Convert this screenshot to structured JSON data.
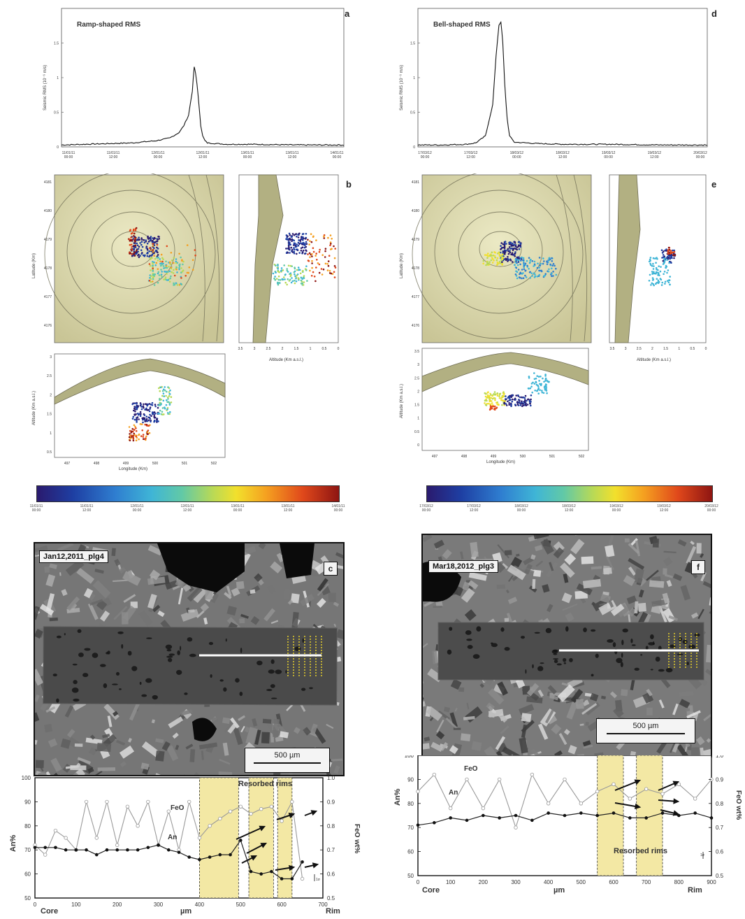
{
  "panels": {
    "a": {
      "letter": "a",
      "title": "Ramp-shaped RMS",
      "ylabel": "Seismic RMS (10⁻⁶ m/s)",
      "yticks": [
        "0",
        "0.5",
        "1",
        "1.5"
      ],
      "xticks": [
        "11/01/11\n00:00",
        "11/01/11\n12:00",
        "12/01/11\n00:00",
        "12/01/11\n12:00",
        "13/01/11\n00:00",
        "13/01/11\n12:00",
        "14/01/11\n00:00"
      ]
    },
    "d": {
      "letter": "d",
      "title": "Bell-shaped RMS",
      "ylabel": "Seismic RMS (10⁻⁶ m/s)",
      "yticks": [
        "0",
        "0.5",
        "1",
        "1.5"
      ],
      "xticks": [
        "17/03/12\n00:00",
        "17/03/12\n12:00",
        "18/03/12\n00:00",
        "18/03/12\n12:00",
        "19/03/12\n00:00",
        "19/03/12\n12:00",
        "20/03/12\n00:00"
      ]
    },
    "b": {
      "letter": "b",
      "lat_label": "Latitude (Km)",
      "lat_ticks": [
        "4181",
        "4180",
        "4179",
        "4178",
        "4177",
        "4176"
      ],
      "alt_label": "Altitude (Km a.s.l.)",
      "alt_ticks": [
        "3.5",
        "3",
        "2.5",
        "2",
        "1.5",
        "1",
        "0.5",
        "0"
      ],
      "lon_label": "Longitude (Km)",
      "lon_ticks": [
        "497",
        "498",
        "499",
        "500",
        "501",
        "502"
      ],
      "alt_vert_label": "Altitude (Km a.s.l.)",
      "alt_vert_ticks": [
        "3",
        "2.5",
        "2",
        "1.5",
        "1",
        "0.5"
      ]
    },
    "e": {
      "letter": "e",
      "lat_label": "Latitude (Km)",
      "lat_ticks": [
        "4181",
        "4180",
        "4179",
        "4178",
        "4177",
        "4176"
      ],
      "alt_label": "Altitude (Km a.s.l.)",
      "alt_ticks": [
        "3.5",
        "3",
        "2.5",
        "2",
        "1.5",
        "1",
        "0.5",
        "0"
      ],
      "lon_label": "Longitude (Km)",
      "lon_ticks": [
        "497",
        "498",
        "499",
        "500",
        "501",
        "502"
      ],
      "alt_vert_label": "Altitude (Km a.s.l.)",
      "alt_vert_ticks": [
        "3.5",
        "3",
        "2.5",
        "2",
        "1.5",
        "1",
        "0.5",
        "0"
      ]
    },
    "c": {
      "letter": "c",
      "sample": "Jan12,2011_plg4",
      "scale": "500 µm",
      "ylabel_left": "An%",
      "ylabel_right": "FeO wt%",
      "shade_label": "Resorbed rims",
      "curve_feo": "FeO",
      "curve_an": "An",
      "yticks_left": [
        "50",
        "60",
        "70",
        "80",
        "90",
        "100"
      ],
      "yticks_right": [
        "0.5",
        "0.6",
        "0.7",
        "0.8",
        "0.9",
        "1.0"
      ],
      "xticks": [
        "0",
        "100",
        "200",
        "300",
        "400",
        "500",
        "600",
        "700"
      ],
      "xlabel": "µm",
      "core": "Core",
      "rim": "Rim",
      "err": "1σ"
    },
    "f": {
      "letter": "f",
      "sample": "Mar18,2012_plg3",
      "scale": "500 µm",
      "ylabel_left": "An%",
      "ylabel_right": "FeO wt%",
      "shade_label": "Resorbed rims",
      "curve_feo": "FeO",
      "curve_an": "An",
      "yticks_left": [
        "50",
        "60",
        "70",
        "80",
        "90",
        "100"
      ],
      "yticks_right": [
        "0.5",
        "0.6",
        "0.7",
        "0.8",
        "0.9",
        "1.0"
      ],
      "xticks": [
        "0",
        "100",
        "200",
        "300",
        "400",
        "500",
        "600",
        "700",
        "800",
        "900"
      ],
      "xlabel": "µm",
      "core": "Core",
      "rim": "Rim",
      "err": "1σ"
    }
  },
  "colorbars": {
    "left": [
      "11/01/11\n00:00",
      "11/01/11\n12:00",
      "12/01/11\n00:00",
      "12/01/11\n12:00",
      "13/01/11\n00:00",
      "13/01/11\n12:00",
      "14/01/11\n00:00"
    ],
    "right": [
      "17/03/12\n00:00",
      "17/03/12\n12:00",
      "18/03/12\n00:00",
      "18/03/12\n12:00",
      "19/03/12\n00:00",
      "19/03/12\n12:00",
      "20/03/12\n00:00"
    ]
  },
  "colors": {
    "map": "#d9d6a6",
    "relief": "#a7a57a",
    "shade": "#f3e8a4",
    "rms": "#111111"
  },
  "chart_data": [
    {
      "type": "line",
      "panel": "a",
      "xlabel": "",
      "ylabel": "Seismic RMS (10⁻⁶ m/s)",
      "ylim": [
        0,
        2
      ],
      "x": [
        0,
        0.5,
        1,
        1.5,
        2,
        2.3,
        2.5,
        2.6,
        2.7,
        2.78,
        2.82,
        2.85,
        2.88,
        2.92,
        2.96,
        3,
        3.05,
        3.1,
        3.5,
        4,
        5,
        6
      ],
      "values": [
        0.02,
        0.03,
        0.04,
        0.05,
        0.08,
        0.12,
        0.2,
        0.3,
        0.45,
        0.8,
        1.15,
        1.05,
        0.9,
        0.6,
        0.3,
        0.15,
        0.08,
        0.05,
        0.03,
        0.03,
        0.02,
        0.02
      ]
    },
    {
      "type": "line",
      "panel": "d",
      "xlabel": "",
      "ylabel": "Seismic RMS (10⁻⁶ m/s)",
      "ylim": [
        0,
        2
      ],
      "x": [
        0,
        0.5,
        1,
        1.2,
        1.4,
        1.55,
        1.62,
        1.68,
        1.72,
        1.76,
        1.8,
        1.85,
        1.9,
        2,
        2.5,
        3,
        4,
        5,
        6
      ],
      "values": [
        0.02,
        0.02,
        0.03,
        0.05,
        0.15,
        0.6,
        1.3,
        1.75,
        1.8,
        1.5,
        0.9,
        0.4,
        0.15,
        0.06,
        0.04,
        0.03,
        0.03,
        0.02,
        0.02
      ]
    },
    {
      "type": "line",
      "panel": "c",
      "xlabel": "µm",
      "ylabel": "An%",
      "ylim": [
        50,
        100
      ],
      "series": [
        {
          "name": "An",
          "x": [
            0,
            25,
            50,
            75,
            100,
            125,
            150,
            175,
            200,
            225,
            250,
            275,
            300,
            325,
            350,
            375,
            400,
            425,
            450,
            475,
            500,
            525,
            550,
            575,
            600,
            625,
            650
          ],
          "values": [
            71,
            71,
            71,
            70,
            70,
            70,
            68,
            70,
            70,
            70,
            70,
            71,
            72,
            70,
            69,
            67,
            66,
            67,
            68,
            68,
            74,
            61,
            60,
            61,
            58,
            58,
            65
          ]
        },
        {
          "name": "FeO",
          "x": [
            0,
            25,
            50,
            75,
            100,
            125,
            150,
            175,
            200,
            225,
            250,
            275,
            300,
            325,
            350,
            375,
            400,
            425,
            450,
            475,
            500,
            525,
            550,
            575,
            600,
            625,
            650
          ],
          "values": [
            0.72,
            0.68,
            0.78,
            0.75,
            0.7,
            0.9,
            0.75,
            0.9,
            0.72,
            0.88,
            0.8,
            0.9,
            0.72,
            0.86,
            0.7,
            0.9,
            0.75,
            0.8,
            0.83,
            0.86,
            0.88,
            0.85,
            0.87,
            0.88,
            0.82,
            0.9,
            0.58
          ]
        }
      ]
    },
    {
      "type": "line",
      "panel": "f",
      "xlabel": "µm",
      "ylabel": "An%",
      "ylim": [
        50,
        100
      ],
      "series": [
        {
          "name": "An",
          "x": [
            0,
            50,
            100,
            150,
            200,
            250,
            300,
            350,
            400,
            450,
            500,
            550,
            600,
            650,
            700,
            750,
            800,
            850,
            900
          ],
          "values": [
            71,
            72,
            74,
            73,
            75,
            74,
            75,
            73,
            76,
            75,
            76,
            75,
            76,
            74,
            74,
            76,
            75,
            76,
            74
          ]
        },
        {
          "name": "FeO",
          "x": [
            0,
            50,
            100,
            150,
            200,
            250,
            300,
            350,
            400,
            450,
            500,
            550,
            600,
            650,
            700,
            750,
            800,
            850,
            900
          ],
          "values": [
            0.85,
            0.92,
            0.78,
            0.9,
            0.78,
            0.9,
            0.7,
            0.92,
            0.8,
            0.9,
            0.8,
            0.85,
            0.88,
            0.82,
            0.86,
            0.84,
            0.88,
            0.82,
            0.9
          ]
        }
      ]
    }
  ]
}
